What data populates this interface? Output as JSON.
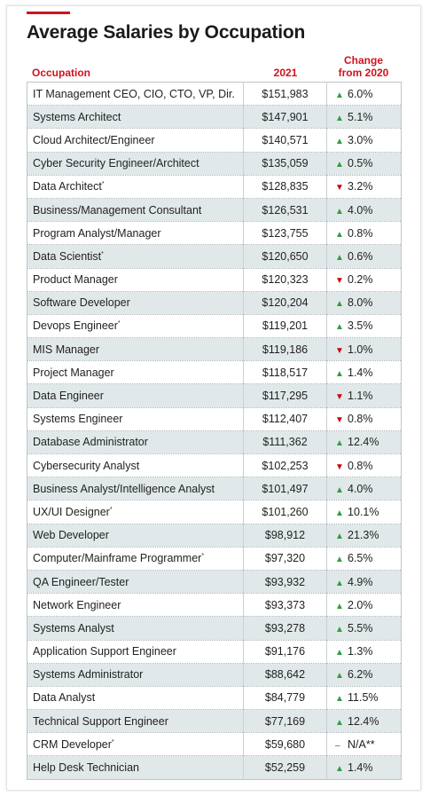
{
  "title": "Average Salaries by Occupation",
  "headers": {
    "occupation": "Occupation",
    "year": "2021",
    "change_line1": "Change",
    "change_line2": "from 2020"
  },
  "colors": {
    "accent": "#d0121b",
    "up": "#2f9e3d",
    "down": "#cc0000",
    "alt_row": "#e1e8ea"
  },
  "chart_data": {
    "type": "table",
    "title": "Average Salaries by Occupation",
    "columns": [
      "Occupation",
      "2021",
      "Change from 2020"
    ],
    "rows": [
      {
        "occupation": "IT Management CEO, CIO, CTO, VP, Dir.",
        "star": "",
        "salary": "$151,983",
        "dir": "up",
        "arrow": "▲",
        "change": "6.0%"
      },
      {
        "occupation": "Systems Architect",
        "star": "",
        "salary": "$147,901",
        "dir": "up",
        "arrow": "▲",
        "change": "5.1%"
      },
      {
        "occupation": "Cloud Architect/Engineer",
        "star": "",
        "salary": "$140,571",
        "dir": "up",
        "arrow": "▲",
        "change": "3.0%"
      },
      {
        "occupation": "Cyber Security Engineer/Architect",
        "star": "",
        "salary": "$135,059",
        "dir": "up",
        "arrow": "▲",
        "change": "0.5%"
      },
      {
        "occupation": "Data Architect",
        "star": "*",
        "salary": "$128,835",
        "dir": "down",
        "arrow": "▼",
        "change": "3.2%"
      },
      {
        "occupation": "Business/Management Consultant",
        "star": "",
        "salary": "$126,531",
        "dir": "up",
        "arrow": "▲",
        "change": "4.0%"
      },
      {
        "occupation": "Program Analyst/Manager",
        "star": "",
        "salary": "$123,755",
        "dir": "up",
        "arrow": "▲",
        "change": "0.8%"
      },
      {
        "occupation": "Data Scientist",
        "star": "*",
        "salary": "$120,650",
        "dir": "up",
        "arrow": "▲",
        "change": "0.6%"
      },
      {
        "occupation": "Product Manager",
        "star": "",
        "salary": "$120,323",
        "dir": "down",
        "arrow": "▼",
        "change": "0.2%"
      },
      {
        "occupation": "Software Developer",
        "star": "",
        "salary": "$120,204",
        "dir": "up",
        "arrow": "▲",
        "change": "8.0%"
      },
      {
        "occupation": "Devops Engineer",
        "star": "*",
        "salary": "$119,201",
        "dir": "up",
        "arrow": "▲",
        "change": "3.5%"
      },
      {
        "occupation": "MIS Manager",
        "star": "",
        "salary": "$119,186",
        "dir": "down",
        "arrow": "▼",
        "change": "1.0%"
      },
      {
        "occupation": "Project Manager",
        "star": "",
        "salary": "$118,517",
        "dir": "up",
        "arrow": "▲",
        "change": "1.4%"
      },
      {
        "occupation": "Data Engineer",
        "star": "",
        "salary": "$117,295",
        "dir": "down",
        "arrow": "▼",
        "change": "1.1%"
      },
      {
        "occupation": "Systems Engineer",
        "star": "",
        "salary": "$112,407",
        "dir": "down",
        "arrow": "▼",
        "change": "0.8%"
      },
      {
        "occupation": "Database Administrator",
        "star": "",
        "salary": "$111,362",
        "dir": "up",
        "arrow": "▲",
        "change": "12.4%"
      },
      {
        "occupation": "Cybersecurity Analyst",
        "star": "",
        "salary": "$102,253",
        "dir": "down",
        "arrow": "▼",
        "change": "0.8%"
      },
      {
        "occupation": "Business Analyst/Intelligence Analyst",
        "star": "",
        "salary": "$101,497",
        "dir": "up",
        "arrow": "▲",
        "change": "4.0%"
      },
      {
        "occupation": "UX/UI Designer",
        "star": "*",
        "salary": "$101,260",
        "dir": "up",
        "arrow": "▲",
        "change": "10.1%"
      },
      {
        "occupation": "Web Developer",
        "star": "",
        "salary": "$98,912",
        "dir": "up",
        "arrow": "▲",
        "change": "21.3%"
      },
      {
        "occupation": "Computer/Mainframe Programmer",
        "star": "*",
        "salary": "$97,320",
        "dir": "up",
        "arrow": "▲",
        "change": "6.5%"
      },
      {
        "occupation": "QA Engineer/Tester",
        "star": "",
        "salary": "$93,932",
        "dir": "up",
        "arrow": "▲",
        "change": "4.9%"
      },
      {
        "occupation": "Network Engineer",
        "star": "",
        "salary": "$93,373",
        "dir": "up",
        "arrow": "▲",
        "change": "2.0%"
      },
      {
        "occupation": "Systems Analyst",
        "star": "",
        "salary": "$93,278",
        "dir": "up",
        "arrow": "▲",
        "change": "5.5%"
      },
      {
        "occupation": "Application Support Engineer",
        "star": "",
        "salary": "$91,176",
        "dir": "up",
        "arrow": "▲",
        "change": "1.3%"
      },
      {
        "occupation": "Systems Administrator",
        "star": "",
        "salary": "$88,642",
        "dir": "up",
        "arrow": "▲",
        "change": "6.2%"
      },
      {
        "occupation": "Data Analyst",
        "star": "",
        "salary": "$84,779",
        "dir": "up",
        "arrow": "▲",
        "change": "11.5%"
      },
      {
        "occupation": "Technical Support Engineer",
        "star": "",
        "salary": "$77,169",
        "dir": "up",
        "arrow": "▲",
        "change": "12.4%"
      },
      {
        "occupation": "CRM Developer",
        "star": "*",
        "salary": "$59,680",
        "dir": "none",
        "arrow": "–",
        "change": "N/A**"
      },
      {
        "occupation": "Help Desk Technician",
        "star": "",
        "salary": "$52,259",
        "dir": "up",
        "arrow": "▲",
        "change": "1.4%"
      }
    ]
  }
}
